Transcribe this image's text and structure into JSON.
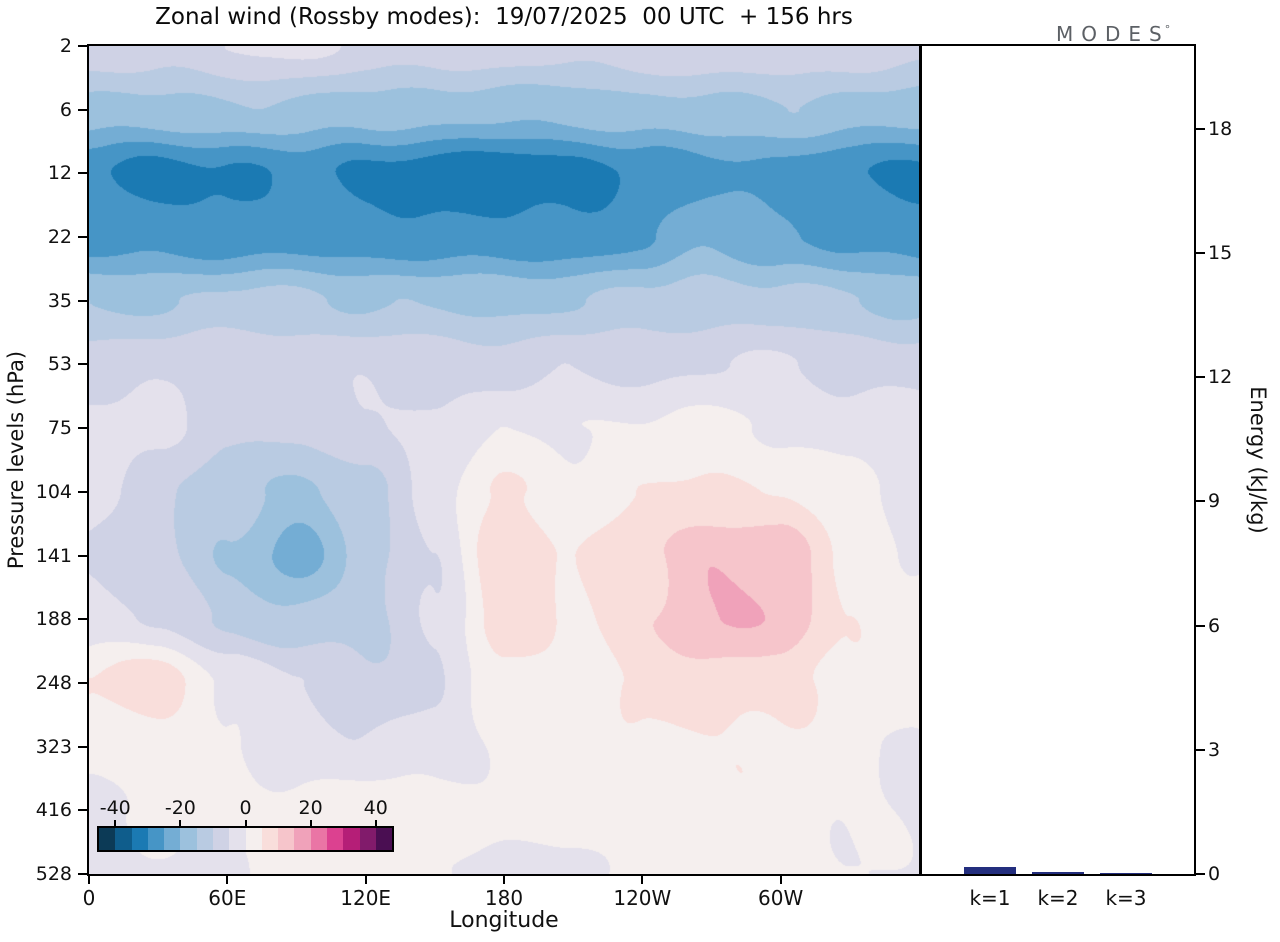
{
  "title": "Zonal wind (Rossby modes):  19/07/2025  00 UTC  + 156 hrs",
  "logo": {
    "text": "MODES",
    "mark": "°"
  },
  "chart_data": [
    {
      "type": "heatmap",
      "title": "Zonal wind (Rossby modes)",
      "valid_datetime": "19/07/2025 00 UTC",
      "lead_time": "+ 156 hrs",
      "xlabel": "Longitude",
      "ylabel": "Pressure levels (hPa)",
      "xlim": [
        0,
        360
      ],
      "x_tick_lons": [
        0,
        60,
        120,
        180,
        240,
        300
      ],
      "x_tick_labels": [
        "0",
        "60E",
        "120E",
        "180",
        "120W",
        "60W"
      ],
      "level_labels": [
        "2",
        "6",
        "12",
        "22",
        "35",
        "53",
        "75",
        "104",
        "141",
        "188",
        "248",
        "323",
        "416",
        "528"
      ],
      "levels_hpa": [
        2,
        6,
        12,
        22,
        35,
        53,
        75,
        104,
        141,
        188,
        248,
        323,
        416,
        528
      ],
      "lon_grid": [
        0,
        30,
        60,
        90,
        120,
        150,
        180,
        210,
        240,
        270,
        300,
        330,
        360
      ],
      "values": [
        [
          -7,
          -7,
          -5,
          -4,
          -6,
          -8,
          -7,
          -8,
          -7,
          -5,
          -6,
          -7,
          -8
        ],
        [
          -17,
          -16,
          -16,
          -16,
          -17,
          -18,
          -18,
          -18,
          -17,
          -16,
          -16,
          -17,
          -17
        ],
        [
          -29,
          -33,
          -31,
          -28,
          -32,
          -33,
          -34,
          -33,
          -29,
          -27,
          -27,
          -29,
          -32
        ],
        [
          -28,
          -27,
          -28,
          -28,
          -28,
          -28,
          -29,
          -28,
          -26,
          -21,
          -24,
          -27,
          -28
        ],
        [
          -16,
          -15,
          -14,
          -14,
          -15,
          -16,
          -16,
          -15,
          -14,
          -12,
          -13,
          -15,
          -16
        ],
        [
          -7,
          -6,
          -6,
          -6,
          -6,
          -7,
          -7,
          -6,
          -6,
          -5,
          -5,
          -6,
          -7
        ],
        [
          -3,
          -4,
          -8,
          -10,
          -6,
          -3,
          -1,
          0,
          1,
          1,
          0,
          -2,
          -3
        ],
        [
          -4,
          -8,
          -13,
          -17,
          -11,
          -3,
          6,
          2,
          4,
          6,
          5,
          1,
          -2
        ],
        [
          -5,
          -9,
          -16,
          -22,
          -13,
          -5,
          10,
          4,
          9,
          15,
          13,
          4,
          -1
        ],
        [
          -3,
          -6,
          -11,
          -14,
          -12,
          -4,
          8,
          4,
          10,
          14,
          15,
          5,
          0
        ],
        [
          5,
          9,
          0,
          -5,
          -9,
          -6,
          3,
          3,
          6,
          8,
          7,
          3,
          1
        ],
        [
          1,
          3,
          0,
          -2,
          -4,
          -3,
          1,
          2,
          4,
          5,
          4,
          2,
          0
        ],
        [
          -1,
          0,
          1,
          2,
          3,
          2,
          2,
          3,
          4,
          4,
          3,
          1,
          -1
        ],
        [
          -1,
          -1,
          0,
          2,
          3,
          1,
          -3,
          -2,
          2,
          3,
          2,
          0,
          -1
        ]
      ],
      "contour_min": -45,
      "contour_step": 5,
      "band_colors": [
        "#0c3a56",
        "#0f5d8c",
        "#1b7ab3",
        "#4695c6",
        "#74add4",
        "#9cc1dd",
        "#b9cbe2",
        "#cfd2e5",
        "#e4e1ec",
        "#f5efee",
        "#f9dedb",
        "#f6c5cb",
        "#f0a2ba",
        "#ea75a5",
        "#dc4190",
        "#b51e77",
        "#811b6b",
        "#4a0e52"
      ],
      "colorbar_tick_values": [
        -40,
        -20,
        0,
        20,
        40
      ],
      "colorbar_tick_labels": [
        "-40",
        "-20",
        "0",
        "20",
        "40"
      ]
    },
    {
      "type": "bar",
      "ylabel": "Energy (kJ/kg)",
      "categories": [
        "k=1",
        "k=2",
        "k=3"
      ],
      "values": [
        0.16,
        0.06,
        0.02
      ],
      "ylim": [
        0,
        20
      ],
      "y_ticks": [
        0,
        3,
        6,
        9,
        12,
        15,
        18
      ],
      "bar_color": "#232e7e"
    }
  ]
}
